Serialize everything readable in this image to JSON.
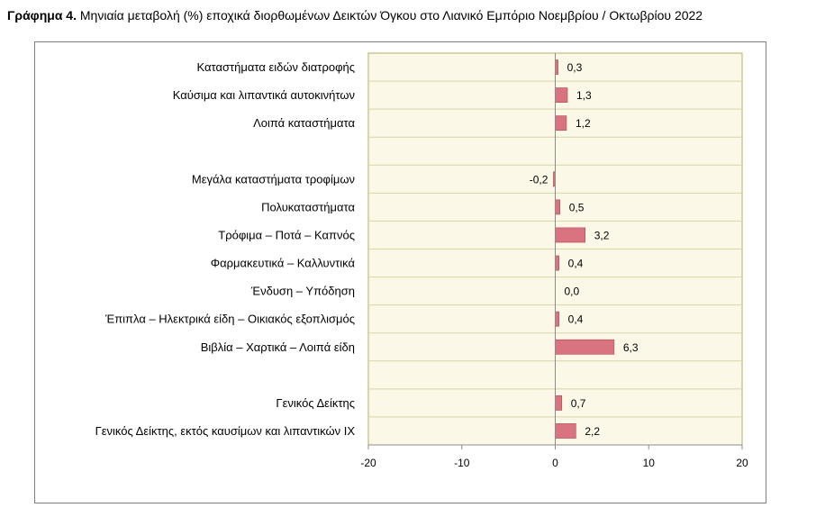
{
  "title": {
    "label": "Γράφημα 4.",
    "text": "Μηνιαία μεταβολή (%) εποχικά διορθωμένων Δεικτών Όγκου στο Λιανικό Εμπόριο Νοεμβρίου / Οκτωβρίου 2022"
  },
  "colors": {
    "bar": "#d9737f",
    "bar_stroke": "#b04a57",
    "plot_bg": "#fbf8e8",
    "plot_border": "#b4ad63",
    "grid": "#d9d4a8"
  },
  "chart_data": {
    "type": "bar",
    "orientation": "horizontal",
    "categories": [
      "Καταστήματα ειδών διατροφής",
      "Καύσιμα και λιπαντικά αυτοκινήτων",
      "Λοιπά καταστήματα",
      "",
      "Μεγάλα καταστήματα τροφίμων",
      "Πολυκαταστήματα",
      "Τρόφιμα – Ποτά – Καπνός",
      "Φαρμακευτικά – Καλλυντικά",
      "Ένδυση – Υπόδηση",
      "Έπιπλα – Ηλεκτρικά είδη – Οικιακός εξοπλισμός",
      "Βιβλία – Χαρτικά – Λοιπά είδη",
      "",
      "Γενικός Δείκτης",
      "Γενικός Δείκτης, εκτός καυσίμων και λιπαντικών ΙΧ"
    ],
    "values": [
      0.3,
      1.3,
      1.2,
      null,
      -0.2,
      0.5,
      3.2,
      0.4,
      0.0,
      0.4,
      6.3,
      null,
      0.7,
      2.2
    ],
    "data_labels": [
      "0,3",
      "1,3",
      "1,2",
      "",
      "-0,2",
      "0,5",
      "3,2",
      "0,4",
      "0,0",
      "0,4",
      "6,3",
      "",
      "0,7",
      "2,2"
    ],
    "xlim": [
      -20,
      20
    ],
    "x_ticks": [
      -20,
      -10,
      0,
      10,
      20
    ],
    "grid": "horizontal",
    "legend": "none",
    "title": "",
    "xlabel": "",
    "ylabel": ""
  }
}
